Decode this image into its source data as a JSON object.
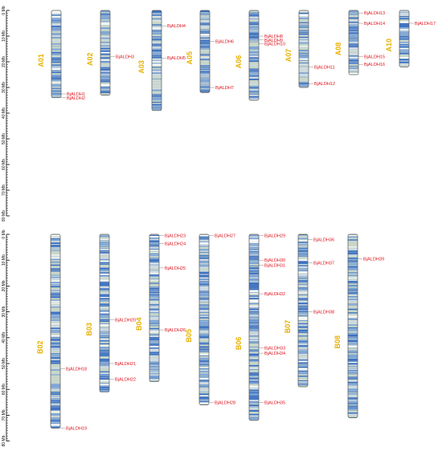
{
  "chart_data": {
    "type": "diagram",
    "panels": [
      {
        "axis": {
          "unit": "Mb",
          "range": [
            0,
            80
          ],
          "ticks": [
            "0 Mb",
            "10 Mb",
            "20 Mb",
            "30 Mb",
            "40 Mb",
            "50 Mb",
            "60 Mb",
            "70 Mb",
            "80 Mb"
          ]
        },
        "chromosomes": [
          {
            "name": "A01",
            "length": 34,
            "genes": [
              {
                "name": "BjALDH1",
                "pos": 32.5
              },
              {
                "name": "BjALDH2",
                "pos": 34.0
              }
            ]
          },
          {
            "name": "A02",
            "length": 33,
            "genes": [
              {
                "name": "BjALDH3",
                "pos": 18.0
              }
            ]
          },
          {
            "name": "A03",
            "length": 39,
            "genes": [
              {
                "name": "BjALDH4",
                "pos": 6.0
              },
              {
                "name": "BjALDH5",
                "pos": 18.5
              }
            ]
          },
          {
            "name": "A05",
            "length": 32,
            "genes": [
              {
                "name": "BjALDH6",
                "pos": 12.0
              },
              {
                "name": "BjALDH7",
                "pos": 30.0
              }
            ]
          },
          {
            "name": "A06",
            "length": 35,
            "genes": [
              {
                "name": "BjALDH8",
                "pos": 10.0
              },
              {
                "name": "BjALDH9",
                "pos": 11.5
              },
              {
                "name": "BjALDH10",
                "pos": 13.0
              }
            ]
          },
          {
            "name": "A07",
            "length": 30,
            "genes": [
              {
                "name": "BjALDH11",
                "pos": 22.0
              },
              {
                "name": "BjALDH12",
                "pos": 28.5
              }
            ]
          },
          {
            "name": "A08",
            "length": 25,
            "genes": [
              {
                "name": "BjALDH13",
                "pos": 1.0
              },
              {
                "name": "BjALDH14",
                "pos": 5.0
              },
              {
                "name": "BjALDH15",
                "pos": 18.0
              },
              {
                "name": "BjALDH16",
                "pos": 21.0
              }
            ]
          },
          {
            "name": "A10",
            "length": 22,
            "genes": [
              {
                "name": "BjALDH17",
                "pos": 5.0
              }
            ]
          }
        ]
      },
      {
        "axis": {
          "unit": "Mb",
          "range": [
            0,
            80
          ],
          "ticks": [
            "0 Mb",
            "10 Mb",
            "20 Mb",
            "30 Mb",
            "40 Mb",
            "50 Mb",
            "60 Mb",
            "70 Mb",
            "80 Mb"
          ]
        },
        "chromosomes": [
          {
            "name": "B02",
            "length": 75,
            "genes": [
              {
                "name": "BjALDH18",
                "pos": 52.0
              },
              {
                "name": "BjALDH19",
                "pos": 75.0
              }
            ]
          },
          {
            "name": "B03",
            "length": 61,
            "genes": [
              {
                "name": "BjALDH20",
                "pos": 33.0
              },
              {
                "name": "BjALDH21",
                "pos": 50.0
              },
              {
                "name": "BjALDH22",
                "pos": 56.0
              }
            ]
          },
          {
            "name": "B04",
            "length": 57,
            "genes": [
              {
                "name": "BjALDH23",
                "pos": 0.5
              },
              {
                "name": "BjALDH24",
                "pos": 3.5
              },
              {
                "name": "BjALDH25",
                "pos": 13.0
              },
              {
                "name": "BjALDH26",
                "pos": 37.0
              }
            ]
          },
          {
            "name": "B05",
            "length": 66,
            "genes": [
              {
                "name": "BjALDH27",
                "pos": 0.5
              },
              {
                "name": "BjALDH28",
                "pos": 65.0
              }
            ]
          },
          {
            "name": "B06",
            "length": 72,
            "genes": [
              {
                "name": "BjALDH29",
                "pos": 0.5
              },
              {
                "name": "BjALDH30",
                "pos": 10.0
              },
              {
                "name": "BjALDH31",
                "pos": 12.0
              },
              {
                "name": "BjALDH32",
                "pos": 23.0
              },
              {
                "name": "BjALDH33",
                "pos": 44.0
              },
              {
                "name": "BjALDH34",
                "pos": 46.0
              },
              {
                "name": "BjALDH35",
                "pos": 65.0
              }
            ]
          },
          {
            "name": "B07",
            "length": 59,
            "genes": [
              {
                "name": "BjALDH36",
                "pos": 2.0
              },
              {
                "name": "BjALDH37",
                "pos": 11.0
              },
              {
                "name": "BjALDH38",
                "pos": 30.0
              }
            ]
          },
          {
            "name": "B08",
            "length": 71,
            "genes": [
              {
                "name": "BjALDH39",
                "pos": 9.5
              }
            ]
          }
        ]
      }
    ],
    "colors": {
      "chromosome_outline": "#555555",
      "band_base": "#c8d6c8",
      "band_dense": "#3a6fc4",
      "band_mid": "#7aa2d8",
      "band_light": "#cfdbe6",
      "chromosome_label": "#e8b100",
      "gene_label": "#e0141e",
      "axis": "#000000"
    }
  }
}
